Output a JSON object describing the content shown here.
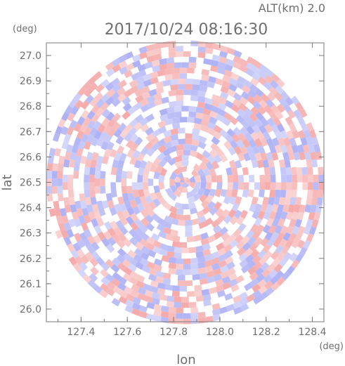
{
  "chart_data": {
    "type": "heatmap",
    "title": "2017/10/24 08:16:30",
    "subtitle": "ALT(km) 2.0",
    "xlabel": "lon",
    "ylabel": "lat",
    "x_unit": "(deg)",
    "y_unit": "(deg)",
    "xlim": [
      127.25,
      128.45
    ],
    "ylim": [
      25.95,
      27.05
    ],
    "x_ticks": [
      127.4,
      127.6,
      127.8,
      128.0,
      128.2,
      128.4
    ],
    "x_tick_labels": [
      "127.4",
      "127.6",
      "127.8",
      "128.0",
      "128.2",
      "128.4"
    ],
    "y_ticks": [
      26.0,
      26.1,
      26.2,
      26.3,
      26.4,
      26.5,
      26.6,
      26.7,
      26.8,
      26.9,
      27.0
    ],
    "y_tick_labels": [
      "26.0",
      "26.1",
      "26.2",
      "26.3",
      "26.4",
      "26.5",
      "26.6",
      "26.7",
      "26.8",
      "26.9",
      "27.0"
    ],
    "coverage": {
      "shape": "circle",
      "center_lon": 127.85,
      "center_lat": 26.5,
      "radius_lon": 0.6,
      "radius_lat": 0.56
    },
    "colors": {
      "positive": "#f4a6a6",
      "negative": "#a9adf4",
      "neutral": "#ffffff",
      "axis": "#7a7a7a",
      "text": "#6f6f6f"
    },
    "grid": false
  }
}
